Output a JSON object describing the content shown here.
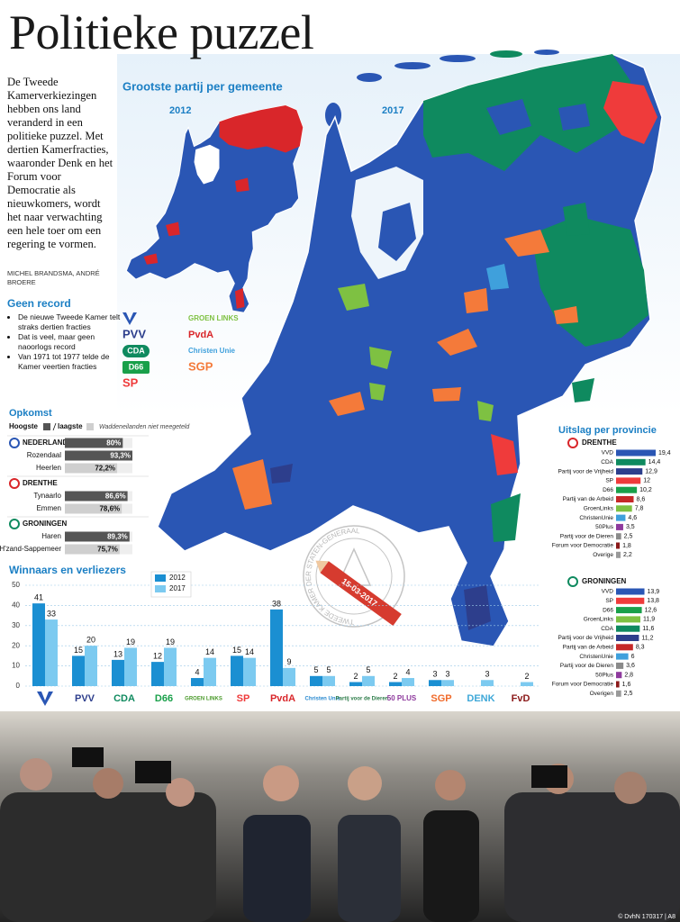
{
  "header": {
    "title": "Politieke puzzel"
  },
  "intro": {
    "text": "De Tweede Kamerverkiezingen hebben ons land veranderd in een politieke puzzel. Met dertien Kamerfracties, waaronder Denk en het Forum voor Democratie als nieuwkomers, wordt het naar verwachting een hele toer om een regering te vormen.",
    "byline": "MICHEL BRANDSMA, ANDRÉ BROERE"
  },
  "record": {
    "title": "Geen record",
    "bullets": [
      "De nieuwe Tweede Kamer telt straks dertien fracties",
      "Dat is veel, maar geen naoorlogs record",
      "Van 1971 tot 1977 telde de Kamer veertien fracties"
    ]
  },
  "map": {
    "title": "Grootste partij per gemeente",
    "years": [
      "2012",
      "2017"
    ],
    "legend": {
      "labels": [
        null,
        "PVV",
        "CDA",
        "D66",
        "SP",
        "GROEN LINKS",
        "PvdA",
        "Christen Unie",
        "SGP"
      ],
      "colors": [
        "#2a56b4",
        "#2d3e8c",
        "#0f8a5f",
        "#19a04a",
        "#ef3b3b",
        "#7ec142",
        "#d9262a",
        "#3fa0dc",
        "#f47a3a"
      ]
    },
    "stamp": "15-03-2017",
    "seal": "TWEEDE KAMER DER STATEN-GENERAAL"
  },
  "provinces_title": "Uitslag per provincie",
  "photo": {
    "credit": "© DvhN 170317 | A8"
  },
  "chart_data": [
    {
      "type": "hbar",
      "title": "Opkomst",
      "note": "Waddeneilanden niet meegeteld",
      "categories": [
        "NEDERLAND",
        "Rozendaal",
        "Heerlen",
        "DRENTHE",
        "Tynaarlo",
        "Emmen",
        "GRONINGEN",
        "Haren",
        "H'zand-Sappemeer"
      ],
      "series": [
        {
          "name": "Hoogste",
          "color": "#555555",
          "values": [
            80,
            93.3,
            null,
            null,
            86.6,
            null,
            null,
            89.3,
            null
          ],
          "value_labels": [
            "80%",
            "93,3%",
            null,
            null,
            "86,6%",
            null,
            null,
            "89,3%",
            null
          ]
        },
        {
          "name": "laagste",
          "color": "#cfcfcf",
          "values": [
            null,
            null,
            72.2,
            null,
            null,
            78.6,
            null,
            null,
            75.7
          ],
          "value_labels": [
            null,
            null,
            "72,2%",
            null,
            null,
            "78,6%",
            null,
            null,
            "75,7%"
          ]
        }
      ]
    },
    {
      "type": "bar",
      "title": "Winnaars en verliezers",
      "categories": [
        null,
        "PVV",
        "CDA",
        "D66",
        "GROEN LINKS",
        "SP",
        "PvdA",
        "Christen Unie",
        "Partij voor de Dieren",
        "50 PLUS",
        "SGP",
        "DENK",
        "FvD"
      ],
      "category_colors": [
        "#2a56b4",
        "#2d3e8c",
        "#0f8a5f",
        "#19a04a",
        "#4a9a2a",
        "#ef3b3b",
        "#d9262a",
        "#2a8ad0",
        "#2e7d4a",
        "#8e3a9d",
        "#f06a2a",
        "#3fa8d8",
        "#8b1a1a"
      ],
      "series": [
        {
          "name": "2012",
          "color": "#1b8fd2",
          "values": [
            41,
            15,
            13,
            12,
            4,
            15,
            38,
            5,
            2,
            2,
            3,
            null,
            null
          ]
        },
        {
          "name": "2017",
          "color": "#7ccaf0",
          "values": [
            33,
            20,
            19,
            19,
            14,
            14,
            9,
            5,
            5,
            4,
            3,
            3,
            2
          ]
        }
      ],
      "ylim": [
        0,
        50
      ],
      "yticks": [
        0,
        10,
        20,
        30,
        40,
        50
      ],
      "grid": true
    },
    {
      "type": "hbar",
      "title": "DRENTHE",
      "categories": [
        "VVD",
        "CDA",
        "Partij voor de Vrijheid",
        "SP",
        "D66",
        "Partij van de Arbeid",
        "GroenLinks",
        "ChristenUnie",
        "50Plus",
        "Partij voor de Dieren",
        "Forum voor Democratie",
        "Overige"
      ],
      "values": [
        19.4,
        14.4,
        12.9,
        12,
        10.2,
        8.6,
        7.8,
        4.6,
        3.5,
        2.5,
        1.8,
        2.2
      ],
      "value_labels": [
        "19,4",
        "14,4",
        "12,9",
        "12",
        "10,2",
        "8,6",
        "7,8",
        "4,6",
        "3,5",
        "2,5",
        "1,8",
        "2,2"
      ],
      "colors": [
        "#2a56b4",
        "#0f8a5f",
        "#2d3e8c",
        "#ef3b3b",
        "#19a04a",
        "#c62828",
        "#7ec142",
        "#3fa0dc",
        "#8e3a9d",
        "#8a8a8a",
        "#8b1a1a",
        "#999999"
      ]
    },
    {
      "type": "hbar",
      "title": "GRONINGEN",
      "categories": [
        "VVD",
        "SP",
        "D66",
        "GroenLinks",
        "CDA",
        "Partij voor de Vrijheid",
        "Partij van de Arbeid",
        "ChristenUnie",
        "Partij voor de Dieren",
        "50Plus",
        "Forum voor Democratie",
        "Overigen"
      ],
      "values": [
        13.9,
        13.8,
        12.6,
        11.9,
        11.6,
        11.2,
        8.3,
        6,
        3.6,
        2.8,
        1.6,
        2.5
      ],
      "value_labels": [
        "13,9",
        "13,8",
        "12,6",
        "11,9",
        "11,6",
        "11,2",
        "8,3",
        "6",
        "3,6",
        "2,8",
        "1,6",
        "2,5"
      ],
      "colors": [
        "#2a56b4",
        "#ef3b3b",
        "#19a04a",
        "#7ec142",
        "#0f8a5f",
        "#2d3e8c",
        "#c62828",
        "#3fa0dc",
        "#8a8a8a",
        "#8e3a9d",
        "#8b1a1a",
        "#999999"
      ]
    }
  ]
}
